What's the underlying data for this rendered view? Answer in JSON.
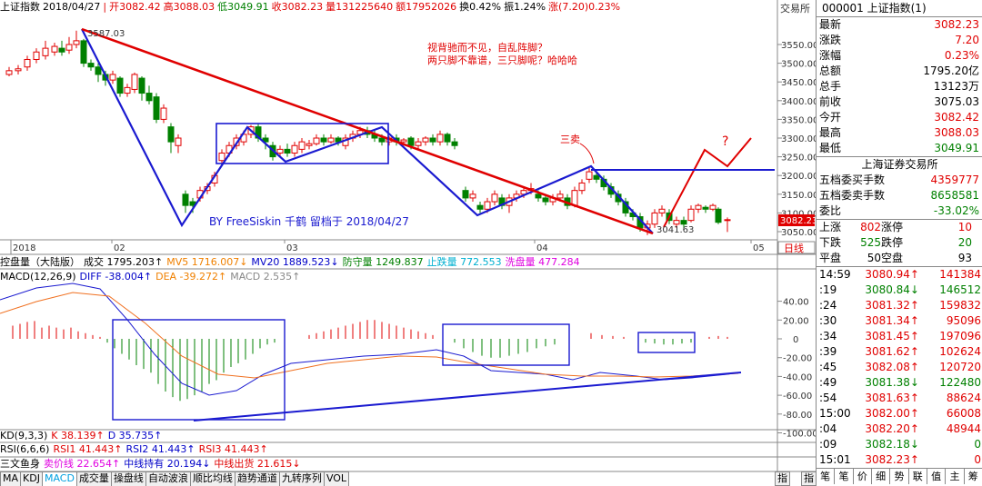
{
  "top_bar": {
    "index_name": "上证指数",
    "date": "2018/04/27",
    "open": "开3082.42",
    "high": "高3088.03",
    "low": "低3049.91",
    "close": "收3082.23",
    "volume": "量131225640",
    "amount": "额17952026",
    "turnover": "换0.42%",
    "amplitude": "振1.24%",
    "change": "涨(7.20)0.23%",
    "exchange_label": "交易所"
  },
  "price_axis": [
    "3550.00",
    "3500.00",
    "3450.00",
    "3400.00",
    "3350.00",
    "3300.00",
    "3250.00",
    "3200.00",
    "3150.00",
    "3100.00",
    "3050.00"
  ],
  "current_price_tag": "3082.23",
  "day_line_label": "日线",
  "time_axis": [
    "2018",
    "02",
    "03",
    "04",
    "05"
  ],
  "annotations": {
    "high_label": "3587.03",
    "low_label": "3041.63",
    "note_line1": "视背驰而不见，自乱阵脚？",
    "note_line2": "两只脚不靠谱，三只脚呢？哈哈哈",
    "sell_label": "三卖",
    "question1": "?",
    "question2": "?",
    "byline": "BY FreeSiskin 千鹤 留档于 2018/04/27"
  },
  "volume_bar": {
    "label": "控盘量（大陆版）",
    "vol": "成交 1795.203↑",
    "mv5": "MV5 1716.007↓",
    "mv20": "MV20 1889.523↓",
    "defend": "防守量 1249.837",
    "stop": "止跌量 772.553",
    "wash": "洗盘量 477.284"
  },
  "macd_bar": {
    "label": "MACD(12,26,9)",
    "diff": "DIFF -38.004↑",
    "dea": "DEA -39.272↑",
    "macd": "MACD 2.535↑"
  },
  "macd_axis": [
    "40.00",
    "20.00",
    "0",
    "-20.00",
    "-40.00",
    "-60.00",
    "-80.00",
    "-100.00"
  ],
  "kd_bar": {
    "label": "KD(9,3,3)",
    "k": "K 38.139↑",
    "d": "D 35.735↑"
  },
  "rsi_bar": {
    "label": "RSI(6,6,6)",
    "rsi1": "RSI1 41.443↑",
    "rsi2": "RSI2 41.443↑",
    "rsi3": "RSI3 41.443↑"
  },
  "fish_bar": {
    "label": "三文鱼身",
    "sell": "卖价线 22.654↑",
    "mid": "中线持有 20.194↓",
    "out": "中线出货 21.615↓"
  },
  "tabs": [
    "MA",
    "KDJ",
    "MACD",
    "成交量",
    "操盘线",
    "自动波浪",
    "顺比均线",
    "趋势通道",
    "九转序列",
    "VOL"
  ],
  "bottom_right_tabs": [
    "指",
    "指"
  ],
  "right_panel": {
    "title": "000001 上证指数(1)",
    "quote": [
      {
        "k": "最新",
        "v": "3082.23",
        "c": "red"
      },
      {
        "k": "涨跌",
        "v": "7.20",
        "c": "red"
      },
      {
        "k": "涨幅",
        "v": "0.23%",
        "c": "red"
      },
      {
        "k": "总额",
        "v": "1795.20亿",
        "c": "dark"
      },
      {
        "k": "总手",
        "v": "13123万",
        "c": "dark"
      },
      {
        "k": "前收",
        "v": "3075.03",
        "c": "dark"
      },
      {
        "k": "今开",
        "v": "3082.42",
        "c": "red"
      },
      {
        "k": "最高",
        "v": "3088.03",
        "c": "red"
      },
      {
        "k": "最低",
        "v": "3049.91",
        "c": "green"
      }
    ],
    "exchange_title": "上海证券交易所",
    "orders": [
      {
        "k": "五档委买手数",
        "v": "4359777",
        "c": "red"
      },
      {
        "k": "五档委卖手数",
        "v": "8658581",
        "c": "green"
      },
      {
        "k": "委比",
        "v": "-33.02%",
        "c": "green"
      }
    ],
    "breadth": [
      {
        "k1": "上涨",
        "v1": "802",
        "k2": "涨停",
        "v2": "10",
        "c": "red"
      },
      {
        "k1": "下跌",
        "v1": "525",
        "k2": "跌停",
        "v2": "20",
        "c": "green"
      },
      {
        "k1": "平盘",
        "v1": "50",
        "k2": "空盘",
        "v2": "93",
        "c": "dark"
      }
    ],
    "ticks": [
      {
        "t": "14:59",
        "p": "3080.94↑",
        "v": "141384",
        "c": "red"
      },
      {
        "t": ":19",
        "p": "3080.84↓",
        "v": "146512",
        "c": "green"
      },
      {
        "t": ":24",
        "p": "3081.32↑",
        "v": "159832",
        "c": "red"
      },
      {
        "t": ":30",
        "p": "3081.34↑",
        "v": "95096",
        "c": "red"
      },
      {
        "t": ":34",
        "p": "3081.45↑",
        "v": "197096",
        "c": "red"
      },
      {
        "t": ":39",
        "p": "3081.62↑",
        "v": "102624",
        "c": "red"
      },
      {
        "t": ":45",
        "p": "3082.08↑",
        "v": "120720",
        "c": "red"
      },
      {
        "t": ":49",
        "p": "3081.38↓",
        "v": "122480",
        "c": "green"
      },
      {
        "t": ":54",
        "p": "3081.63↑",
        "v": "88624",
        "c": "red"
      },
      {
        "t": "15:00",
        "p": "3082.00↑",
        "v": "66008",
        "c": "red"
      },
      {
        "t": ":04",
        "p": "3082.20↑",
        "v": "48944",
        "c": "red"
      },
      {
        "t": ":09",
        "p": "3082.18↓",
        "v": "0",
        "c": "green"
      },
      {
        "t": "15:01",
        "p": "3082.23↑",
        "v": "0",
        "c": "red"
      }
    ],
    "bottom_tabs": [
      "笔",
      "笔",
      "价",
      "细",
      "势",
      "联",
      "值",
      "主",
      "筹"
    ]
  },
  "colors": {
    "up": "#e00000",
    "down": "#008000",
    "trend": "#1a1ad0",
    "redline": "#e00000",
    "macd_diff": "#1a1ad0",
    "macd_dea": "#f07020"
  }
}
